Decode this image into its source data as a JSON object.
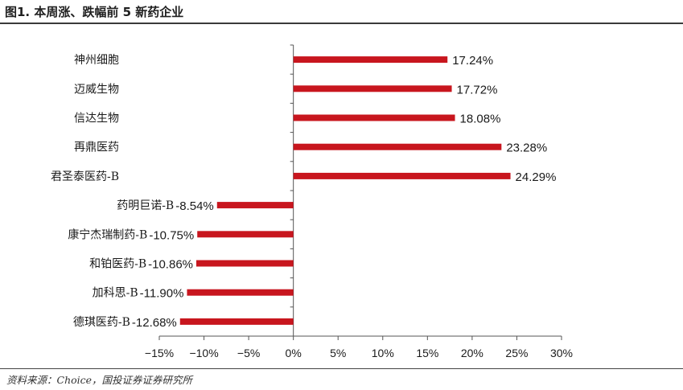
{
  "header": {
    "title": "图1. 本周涨、跌幅前 5 新药企业"
  },
  "footer": {
    "source": "资料来源：Choice，国投证券证券研究所"
  },
  "chart_data": {
    "type": "bar",
    "orientation": "horizontal",
    "categories": [
      "神州细胞",
      "迈威生物",
      "信达生物",
      "再鼎医药",
      "君圣泰医药-B",
      "药明巨诺-B",
      "康宁杰瑞制药-B",
      "和铂医药-B",
      "加科思-B",
      "德琪医药-B"
    ],
    "values": [
      17.24,
      17.72,
      18.08,
      23.28,
      24.29,
      -8.54,
      -10.75,
      -10.86,
      -11.9,
      -12.68
    ],
    "value_labels": [
      "17.24%",
      "17.72%",
      "18.08%",
      "23.28%",
      "24.29%",
      "-8.54%",
      "-10.75%",
      "-10.86%",
      "-11.90%",
      "-12.68%"
    ],
    "xticks": [
      -15,
      -10,
      -5,
      0,
      5,
      10,
      15,
      20,
      25,
      30
    ],
    "xtick_labels": [
      "−15%",
      "−10%",
      "−5%",
      "0%",
      "5%",
      "10%",
      "15%",
      "20%",
      "25%",
      "30%"
    ],
    "xlim": [
      -15,
      30
    ],
    "unit": "%",
    "title": "",
    "xlabel": "",
    "ylabel": "",
    "grid": false,
    "colors": {
      "bar": "#c8161e",
      "axis": "#555555"
    }
  }
}
